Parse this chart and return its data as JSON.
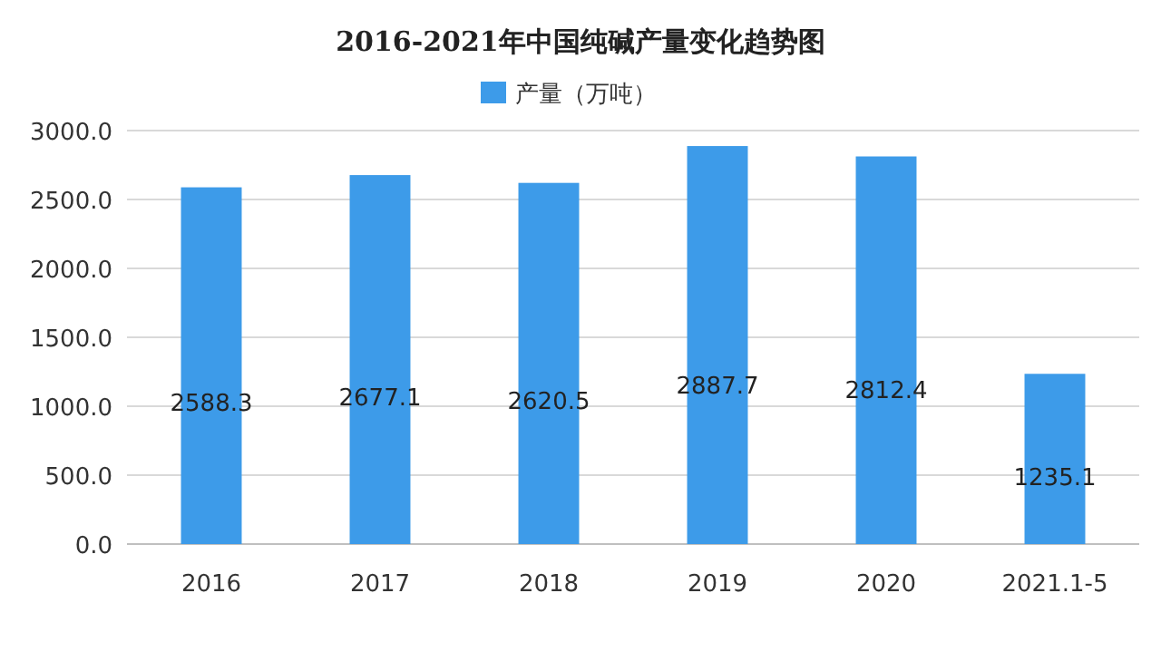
{
  "chart_data": {
    "type": "bar",
    "title": "2016-2021年中国纯碱产量变化趋势图",
    "categories": [
      "2016",
      "2017",
      "2018",
      "2019",
      "2020",
      "2021.1-5"
    ],
    "series": [
      {
        "name": "产量（万吨）",
        "color": "#3d9be9",
        "values": [
          2588.3,
          2677.1,
          2620.5,
          2887.7,
          2812.4,
          1235.1
        ]
      }
    ],
    "ylim": [
      0,
      3000
    ],
    "yticks": [
      {
        "value": 0,
        "label": "0.0"
      },
      {
        "value": 500,
        "label": "500.0"
      },
      {
        "value": 1000,
        "label": "1000.0"
      },
      {
        "value": 1500,
        "label": "1500.0"
      },
      {
        "value": 2000,
        "label": "2000.0"
      },
      {
        "value": 2500,
        "label": "2500.0"
      },
      {
        "value": 3000,
        "label": "3000.0"
      }
    ],
    "grid": "y",
    "legend": "top",
    "data_labels": true
  }
}
